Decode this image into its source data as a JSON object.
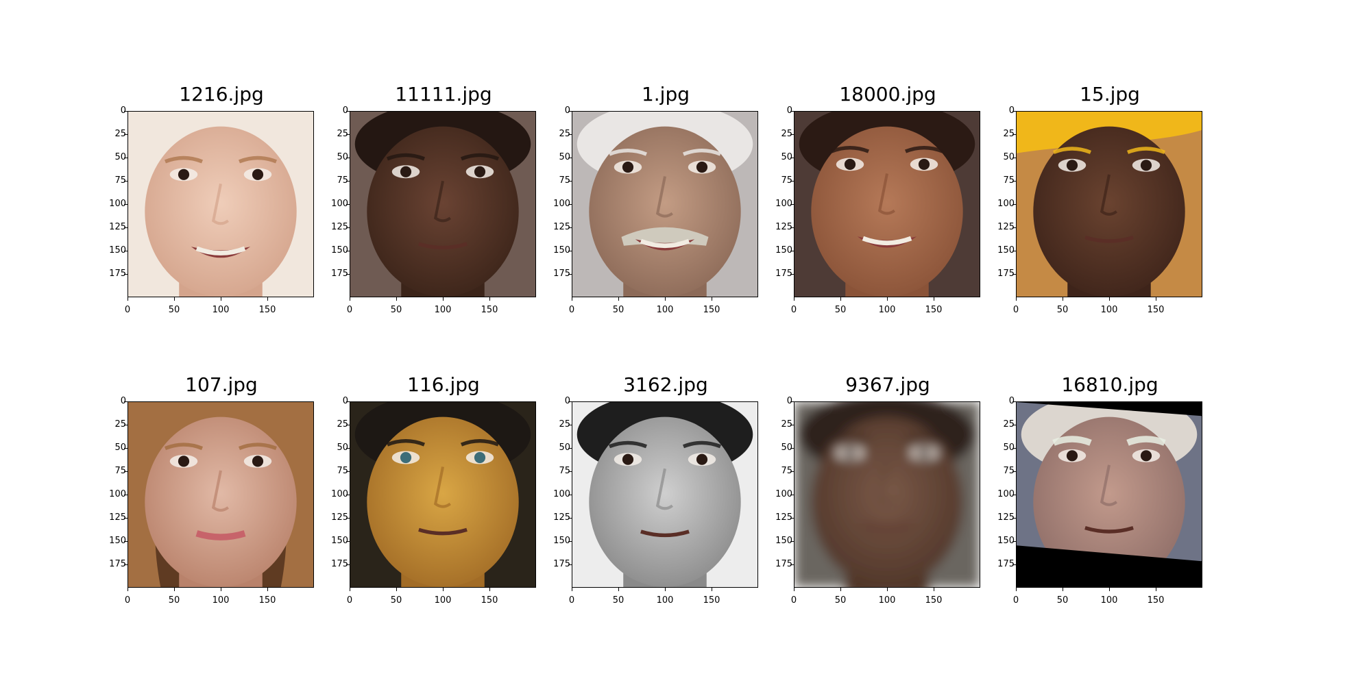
{
  "figure": {
    "panels": [
      {
        "filename": "1216.jpg",
        "depicts": "baby face",
        "colors": {
          "skin": "#efcdb9",
          "shade": "#d4a48c",
          "bg": "#f1e7dd",
          "hair": "#b07a52"
        }
      },
      {
        "filename": "11111.jpg",
        "depicts": "man face, dark skin",
        "colors": {
          "skin": "#6a4333",
          "shade": "#3b2419",
          "bg": "#6f5b53",
          "hair": "#241712"
        }
      },
      {
        "filename": "1.jpg",
        "depicts": "elderly man with mustache",
        "colors": {
          "skin": "#c39c84",
          "shade": "#8c6a58",
          "bg": "#bdb8b7",
          "hair": "#e9e6e4"
        }
      },
      {
        "filename": "18000.jpg",
        "depicts": "smiling girl",
        "colors": {
          "skin": "#b57958",
          "shade": "#8a5338",
          "bg": "#4e3b36",
          "hair": "#2b1a14"
        }
      },
      {
        "filename": "15.jpg",
        "depicts": "elderly woman with yellow head scarf",
        "colors": {
          "skin": "#6a4330",
          "shade": "#3e241a",
          "bg": "#c58a45",
          "hair": "#f0b71a"
        }
      },
      {
        "filename": "107.jpg",
        "depicts": "girl with long hair",
        "colors": {
          "skin": "#e1b9a6",
          "shade": "#b9826b",
          "bg": "#5f3b22",
          "hair": "#a36f42"
        }
      },
      {
        "filename": "116.jpg",
        "depicts": "young girl",
        "colors": {
          "skin": "#d9a645",
          "shade": "#a26c26",
          "bg": "#2a241a",
          "hair": "#1d1814"
        }
      },
      {
        "filename": "3162.jpg",
        "depicts": "black and white portrait of young man",
        "colors": {
          "skin": "#cfcfcf",
          "shade": "#8a8a8a",
          "bg": "#ededed",
          "hair": "#1e1e1e"
        }
      },
      {
        "filename": "9367.jpg",
        "depicts": "blurred man face",
        "colors": {
          "skin": "#7a5948",
          "shade": "#4f3528",
          "bg": "#6b6660",
          "hair": "#2d201a"
        }
      },
      {
        "filename": "16810.jpg",
        "depicts": "elderly man, rotated with black borders",
        "colors": {
          "skin": "#c29a8c",
          "shade": "#8f6e68",
          "bg": "#6e7386",
          "hair": "#dcd6cf"
        }
      }
    ],
    "y_ticks": [
      "0",
      "25",
      "50",
      "75",
      "100",
      "125",
      "150",
      "175"
    ],
    "x_ticks": [
      "0",
      "50",
      "100",
      "150"
    ]
  }
}
